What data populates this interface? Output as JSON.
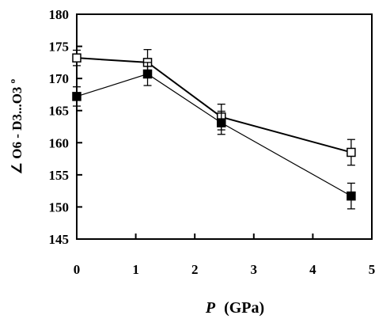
{
  "chart_data": {
    "type": "line",
    "xlabel_var": "P",
    "xlabel_unit": "(GPa)",
    "ylabel": "∠ O6 - D3...O3",
    "ylabel_unit": "o",
    "xlim": [
      0,
      5
    ],
    "ylim": [
      145,
      180
    ],
    "xticks": [
      0,
      1,
      2,
      3,
      4,
      5
    ],
    "yticks": [
      145,
      150,
      155,
      160,
      165,
      170,
      175,
      180
    ],
    "grid": false,
    "series": [
      {
        "marker": "open-square",
        "x": [
          0,
          1.2,
          2.45,
          4.65
        ],
        "y": [
          173.2,
          172.5,
          164.0,
          158.5
        ],
        "err": [
          1.2,
          2.0,
          2.0,
          2.0
        ]
      },
      {
        "marker": "filled-square",
        "x": [
          0,
          1.2,
          2.45,
          4.65
        ],
        "y": [
          167.2,
          170.7,
          163.1,
          151.7
        ],
        "err": [
          1.5,
          1.8,
          1.8,
          2.0
        ]
      }
    ]
  }
}
